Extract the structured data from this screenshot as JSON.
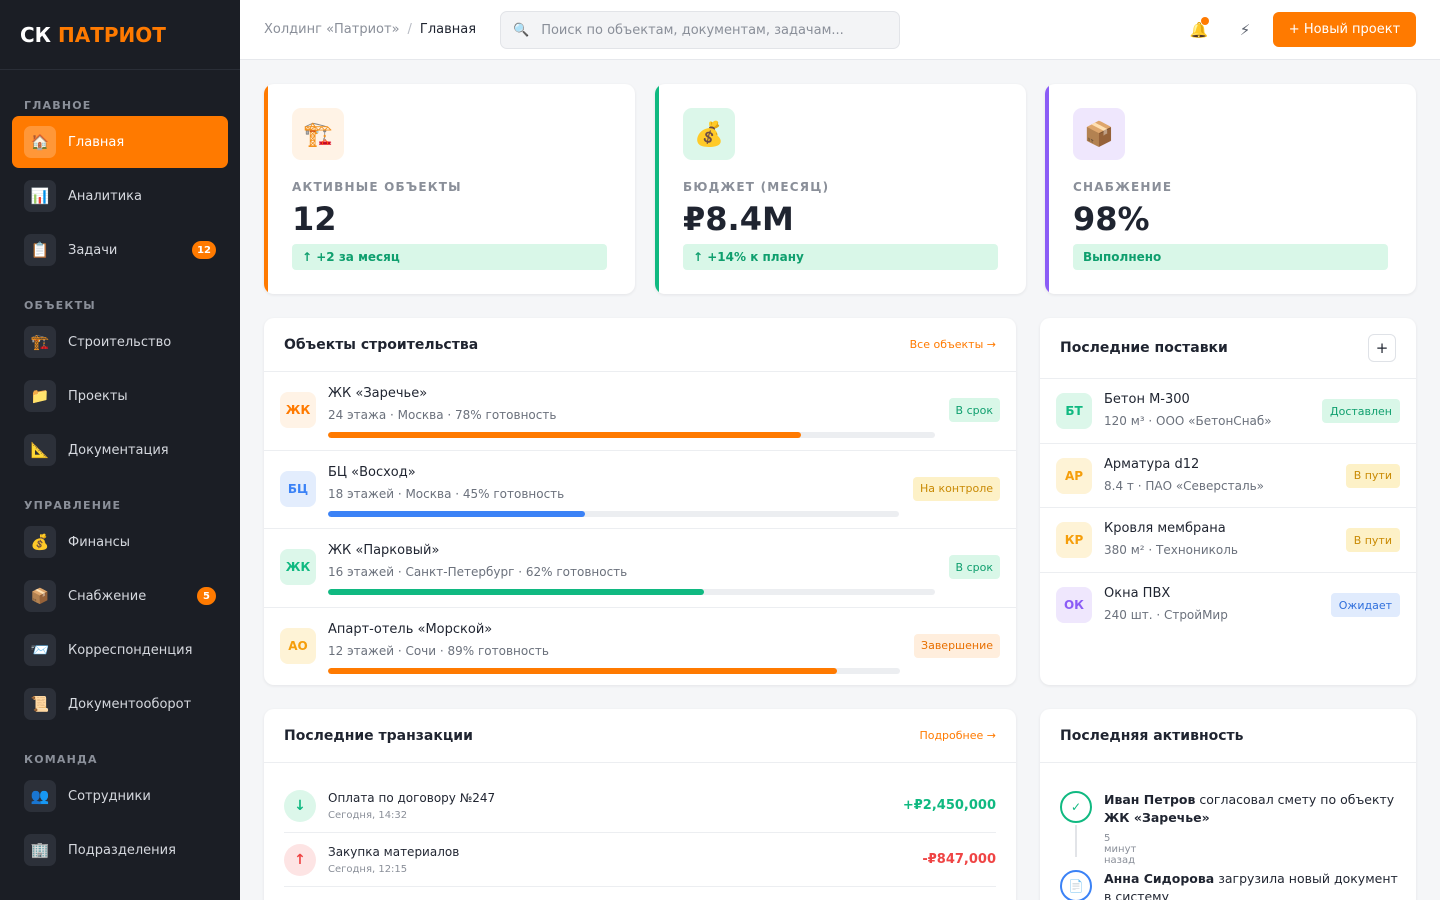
{
  "brand": {
    "first": "СК",
    "second": "ПАТРИОТ",
    "accent": "#ff7a00"
  },
  "sidebar": {
    "sections": [
      {
        "title": "ГЛАВНОЕ",
        "items": [
          {
            "label": "Главная",
            "icon": "🏠",
            "icon_name": "home-icon",
            "active": true
          },
          {
            "label": "Аналитика",
            "icon": "📊",
            "icon_name": "chart-icon"
          },
          {
            "label": "Задачи",
            "icon": "📋",
            "icon_name": "clipboard-icon",
            "badge": "12"
          }
        ]
      },
      {
        "title": "ОБЪЕКТЫ",
        "items": [
          {
            "label": "Строительство",
            "icon": "🏗️",
            "icon_name": "crane-icon"
          },
          {
            "label": "Проекты",
            "icon": "📁",
            "icon_name": "folder-icon"
          },
          {
            "label": "Документация",
            "icon": "📐",
            "icon_name": "ruler-icon"
          }
        ]
      },
      {
        "title": "УПРАВЛЕНИЕ",
        "items": [
          {
            "label": "Финансы",
            "icon": "💰",
            "icon_name": "money-bag-icon"
          },
          {
            "label": "Снабжение",
            "icon": "📦",
            "icon_name": "package-icon",
            "badge": "5"
          },
          {
            "label": "Корреспонденция",
            "icon": "📨",
            "icon_name": "envelope-icon"
          },
          {
            "label": "Документооборот",
            "icon": "📜",
            "icon_name": "scroll-icon"
          }
        ]
      },
      {
        "title": "КОМАНДА",
        "items": [
          {
            "label": "Сотрудники",
            "icon": "👥",
            "icon_name": "people-icon"
          },
          {
            "label": "Подразделения",
            "icon": "🏢",
            "icon_name": "building-icon"
          }
        ]
      }
    ]
  },
  "header": {
    "breadcrumb": [
      "Холдинг «Патриот»",
      "Главная"
    ],
    "separator": "/",
    "search_placeholder": "Поиск по объектам, документам, задачам...",
    "search_icon": "🔍",
    "bell_icon": "🔔",
    "bolt_icon": "⚡",
    "new_project": "+ Новый проект"
  },
  "stats": [
    {
      "label": "АКТИВНЫЕ ОБЪЕКТЫ",
      "value": "12",
      "delta": "↑ +2 за месяц",
      "icon": "🏗️",
      "icon_name": "crane-icon",
      "color": "orange"
    },
    {
      "label": "БЮДЖЕТ (МЕСЯЦ)",
      "value": "₽8.4M",
      "delta": "↑ +14% к плану",
      "icon": "💰",
      "icon_name": "money-bag-icon",
      "color": "green"
    },
    {
      "label": "СНАБЖЕНИЕ",
      "value": "98%",
      "delta": "Выполнено",
      "icon": "📦",
      "icon_name": "package-icon",
      "color": "purple"
    }
  ],
  "objects": {
    "title": "Объекты строительства",
    "link": "Все объекты →",
    "items": [
      {
        "abbr": "ЖК",
        "name": "ЖК «Заречье»",
        "meta": "24 этажа · Москва · 78% готовность",
        "progress": 78,
        "status": "В срок",
        "tone": "orange",
        "status_tone": "green"
      },
      {
        "abbr": "БЦ",
        "name": "БЦ «Восход»",
        "meta": "18 этажей · Москва · 45% готовность",
        "progress": 45,
        "status": "На контроле",
        "tone": "blue",
        "status_tone": "yellow"
      },
      {
        "abbr": "ЖК",
        "name": "ЖК «Парковый»",
        "meta": "16 этажей · Санкт-Петербург · 62% готовность",
        "progress": 62,
        "status": "В срок",
        "tone": "green",
        "status_tone": "green"
      },
      {
        "abbr": "АО",
        "name": "Апарт-отель «Морской»",
        "meta": "12 этажей · Сочи · 89% готовность",
        "progress": 89,
        "status": "Завершение",
        "tone": "amber",
        "status_tone": "peach"
      }
    ]
  },
  "deliveries": {
    "title": "Последние поставки",
    "add": "+",
    "items": [
      {
        "abbr": "БТ",
        "name": "Бетон М-300",
        "meta": "120 м³ · ООО «БетонСнаб»",
        "status": "Доставлен",
        "tone": "green",
        "status_tone": "green"
      },
      {
        "abbr": "АР",
        "name": "Арматура d12",
        "meta": "8.4 т · ПАО «Северсталь»",
        "status": "В пути",
        "tone": "amber",
        "status_tone": "yellow"
      },
      {
        "abbr": "КР",
        "name": "Кровля мембрана",
        "meta": "380 м² · Технониколь",
        "status": "В пути",
        "tone": "amber",
        "status_tone": "yellow"
      },
      {
        "abbr": "ОК",
        "name": "Окна ПВХ",
        "meta": "240 шт. · СтройМир",
        "status": "Ожидает",
        "tone": "purple",
        "status_tone": "blue"
      }
    ]
  },
  "transactions": {
    "title": "Последние транзакции",
    "link": "Подробнее →",
    "items": [
      {
        "name": "Оплата по договору №247",
        "time": "Сегодня, 14:32",
        "amount": "+₽2,450,000",
        "direction": "in",
        "icon": "↓"
      },
      {
        "name": "Закупка материалов",
        "time": "Сегодня, 12:15",
        "amount": "-₽847,000",
        "direction": "out",
        "icon": "↑"
      }
    ]
  },
  "activity": {
    "title": "Последняя активность",
    "items": [
      {
        "who": "Иван Петров",
        "text": " согласовал смету по объекту ",
        "target": "ЖК «Заречье»",
        "time": "5 минут назад",
        "icon": "✓",
        "color": "#10b981"
      },
      {
        "who": "Анна Сидорова",
        "text": " загрузила новый документ в систему",
        "target": "",
        "time": "",
        "icon": "📄",
        "color": "#3b82f6"
      }
    ]
  },
  "palette": {
    "orange": "#ff7a00",
    "green": "#10b981",
    "blue": "#3b82f6",
    "purple": "#8b5cf6",
    "red": "#ef4444",
    "amber": "#f59e0b"
  }
}
